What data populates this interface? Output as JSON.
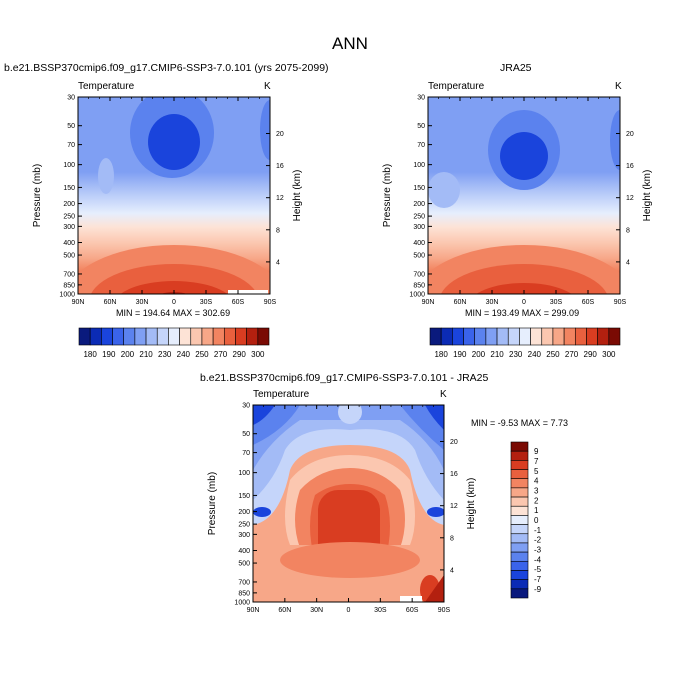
{
  "figure": {
    "title": "ANN"
  },
  "panels": [
    {
      "title": "b.e21.BSSP370cmip6.f09_g17.CMIP6-SSP3-7.0.101 (yrs 2075-2099)",
      "variable": "Temperature",
      "units": "K",
      "minmax": "MIN = 194.64   MAX = 302.69"
    },
    {
      "title": "JRA25",
      "variable": "Temperature",
      "units": "K",
      "minmax": "MIN = 193.49   MAX = 299.09"
    },
    {
      "title": "b.e21.BSSP370cmip6.f09_g17.CMIP6-SSP3-7.0.101 - JRA25",
      "variable": "Temperature",
      "units": "K",
      "minmax": "MIN =  -9.53   MAX =   7.73"
    }
  ],
  "colors": {
    "abs_scale": [
      "#0a1a7d",
      "#0b2bb5",
      "#1a44dc",
      "#3a63ea",
      "#5b82ee",
      "#7f9ff3",
      "#a3bbf6",
      "#c5d5fa",
      "#e6eefd",
      "#fde3d6",
      "#fbc7b0",
      "#f7a788",
      "#f28461",
      "#e9603e",
      "#d93d21",
      "#b3200f",
      "#7a0a03"
    ],
    "diff_scale": [
      "#0a1a7d",
      "#0b2bb5",
      "#1a44dc",
      "#3a63ea",
      "#5b82ee",
      "#7f9ff3",
      "#a3bbf6",
      "#c5d5fa",
      "#e6eefd",
      "#fde3d6",
      "#fbc7b0",
      "#f7a788",
      "#f28461",
      "#e9603e",
      "#d93d21",
      "#b3200f",
      "#7a0a03"
    ]
  },
  "chart_data": [
    {
      "type": "heatmap",
      "title": "b.e21.BSSP370cmip6.f09_g17.CMIP6-SSP3-7.0.101 (yrs 2075-2099)",
      "xlabel": "",
      "ylabel": "Pressure (mb)",
      "y2label": "Height (km)",
      "x_ticks": [
        "90N",
        "60N",
        "30N",
        "0",
        "30S",
        "60S",
        "90S"
      ],
      "y_ticks": [
        "30",
        "50",
        "70",
        "100",
        "150",
        "200",
        "250",
        "300",
        "400",
        "500",
        "700",
        "850",
        "1000"
      ],
      "y2_ticks": [
        "20",
        "16",
        "12",
        "8",
        "4"
      ],
      "colorbar_labels": [
        "180",
        "190",
        "200",
        "210",
        "230",
        "240",
        "250",
        "270",
        "290",
        "300"
      ],
      "min": 194.64,
      "max": 302.69
    },
    {
      "type": "heatmap",
      "title": "JRA25",
      "xlabel": "",
      "ylabel": "Pressure (mb)",
      "y2label": "Height (km)",
      "x_ticks": [
        "90N",
        "60N",
        "30N",
        "0",
        "30S",
        "60S",
        "90S"
      ],
      "y_ticks": [
        "30",
        "50",
        "70",
        "100",
        "150",
        "200",
        "250",
        "300",
        "400",
        "500",
        "700",
        "850",
        "1000"
      ],
      "y2_ticks": [
        "20",
        "16",
        "12",
        "8",
        "4"
      ],
      "colorbar_labels": [
        "180",
        "190",
        "200",
        "210",
        "230",
        "240",
        "250",
        "270",
        "290",
        "300"
      ],
      "min": 193.49,
      "max": 299.09
    },
    {
      "type": "heatmap",
      "title": "b.e21.BSSP370cmip6.f09_g17.CMIP6-SSP3-7.0.101 - JRA25",
      "xlabel": "",
      "ylabel": "Pressure (mb)",
      "y2label": "Height (km)",
      "x_ticks": [
        "90N",
        "60N",
        "30N",
        "0",
        "30S",
        "60S",
        "90S"
      ],
      "y_ticks": [
        "30",
        "50",
        "70",
        "100",
        "150",
        "200",
        "250",
        "300",
        "400",
        "500",
        "700",
        "850",
        "1000"
      ],
      "y2_ticks": [
        "20",
        "16",
        "12",
        "8",
        "4"
      ],
      "colorbar_labels": [
        "9",
        "7",
        "5",
        "4",
        "3",
        "2",
        "1",
        "0",
        "-1",
        "-2",
        "-3",
        "-4",
        "-5",
        "-7",
        "-9"
      ],
      "min": -9.53,
      "max": 7.73
    }
  ]
}
